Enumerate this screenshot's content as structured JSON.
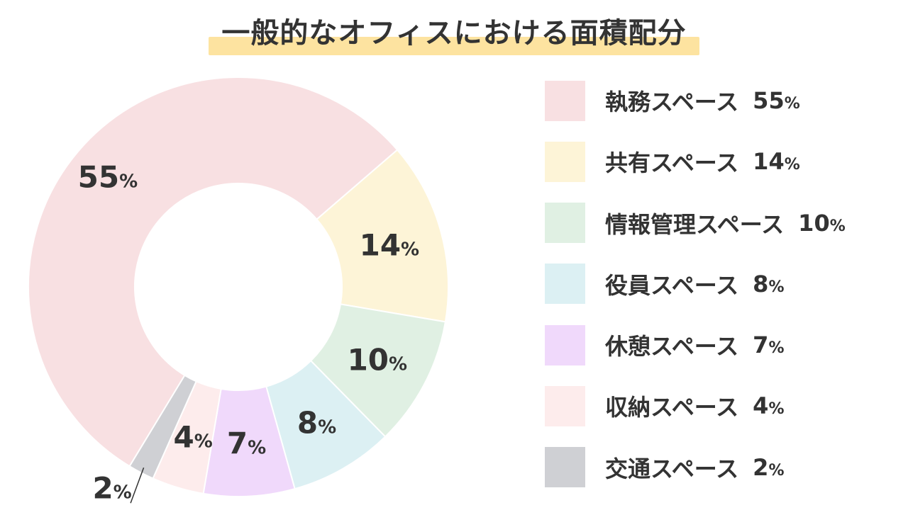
{
  "chart_data": {
    "type": "pie",
    "title": "一般的なオフィスにおける面積配分",
    "unit": "%",
    "slices": [
      {
        "label": "執務スペース",
        "value": 55,
        "color": "#f8e0e2"
      },
      {
        "label": "共有スペース",
        "value": 14,
        "color": "#fdf4d7"
      },
      {
        "label": "情報管理スペース",
        "value": 10,
        "color": "#e0f0e3"
      },
      {
        "label": "役員スペース",
        "value": 8,
        "color": "#dcf0f3"
      },
      {
        "label": "休憩スペース",
        "value": 7,
        "color": "#f0d9fb"
      },
      {
        "label": "収納スペース",
        "value": 4,
        "color": "#fdecec"
      },
      {
        "label": "交通スペース",
        "value": 2,
        "color": "#cfd0d4"
      }
    ],
    "legend_position": "right"
  }
}
